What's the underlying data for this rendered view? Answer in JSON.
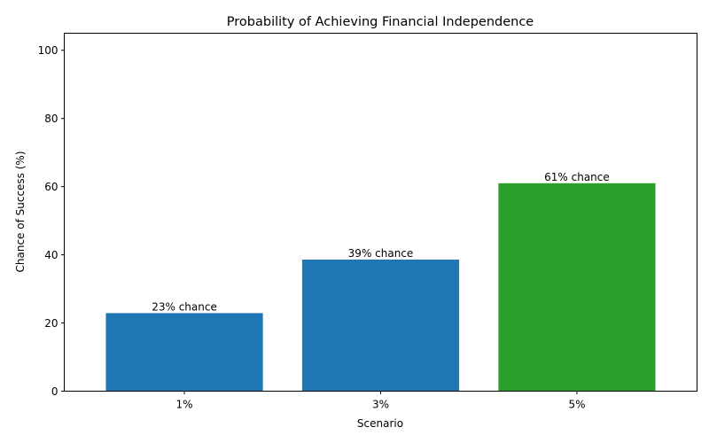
{
  "chart_data": {
    "type": "bar",
    "title": "Probability of Achieving Financial Independence",
    "xlabel": "Scenario",
    "ylabel": "Chance of Success (%)",
    "categories": [
      "1%",
      "3%",
      "5%"
    ],
    "values": [
      22.9,
      38.6,
      61.0
    ],
    "bar_labels": [
      "23% chance",
      "39% chance",
      "61% chance"
    ],
    "colors": [
      "#1f77b4",
      "#1f77b4",
      "#2ca02c"
    ],
    "ylim": [
      0,
      105
    ],
    "yticks": [
      0,
      20,
      40,
      60,
      80,
      100
    ],
    "grid": false,
    "legend": null
  }
}
